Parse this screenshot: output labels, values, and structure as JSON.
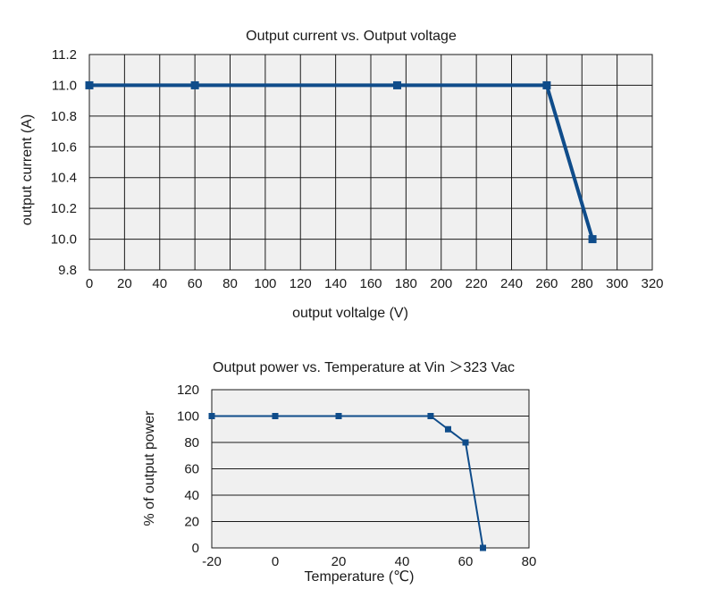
{
  "chart_data": [
    {
      "type": "line",
      "title": "Output current vs. Output voltage",
      "xlabel": "output voltalge (V)",
      "ylabel": "output current (A)",
      "xlim": [
        0,
        320
      ],
      "ylim": [
        9.8,
        11.2
      ],
      "xticks": [
        0,
        20,
        40,
        60,
        80,
        100,
        120,
        140,
        160,
        180,
        200,
        220,
        240,
        260,
        280,
        300,
        320
      ],
      "yticks": [
        9.8,
        10.0,
        10.2,
        10.4,
        10.6,
        10.8,
        11.0,
        11.2
      ],
      "ytick_labels": [
        "9.8",
        "10.0",
        "10.2",
        "10.4",
        "10.6",
        "10.8",
        "11.0",
        "11.2"
      ],
      "grid": true,
      "series": [
        {
          "name": "output current",
          "color": "#0f4c8a",
          "marker": "square",
          "x": [
            0,
            60,
            175,
            260,
            286
          ],
          "y": [
            11.0,
            11.0,
            11.0,
            11.0,
            10.0
          ]
        }
      ]
    },
    {
      "type": "line",
      "title": "Output power vs. Temperature at Vin ＞323 Vac",
      "xlabel": "Temperature (℃)",
      "ylabel": "% of output power",
      "xlim": [
        -20,
        80
      ],
      "ylim": [
        0,
        120
      ],
      "xticks": [
        -20,
        0,
        20,
        40,
        60,
        80
      ],
      "yticks": [
        0,
        20,
        40,
        60,
        80,
        100,
        120
      ],
      "grid": "horizontal",
      "series": [
        {
          "name": "% of output power",
          "color": "#0f4c8a",
          "marker": "square",
          "x": [
            -20,
            0,
            20,
            49,
            54.5,
            60,
            65.5
          ],
          "y": [
            100,
            100,
            100,
            100,
            90,
            80,
            0
          ]
        }
      ]
    }
  ]
}
